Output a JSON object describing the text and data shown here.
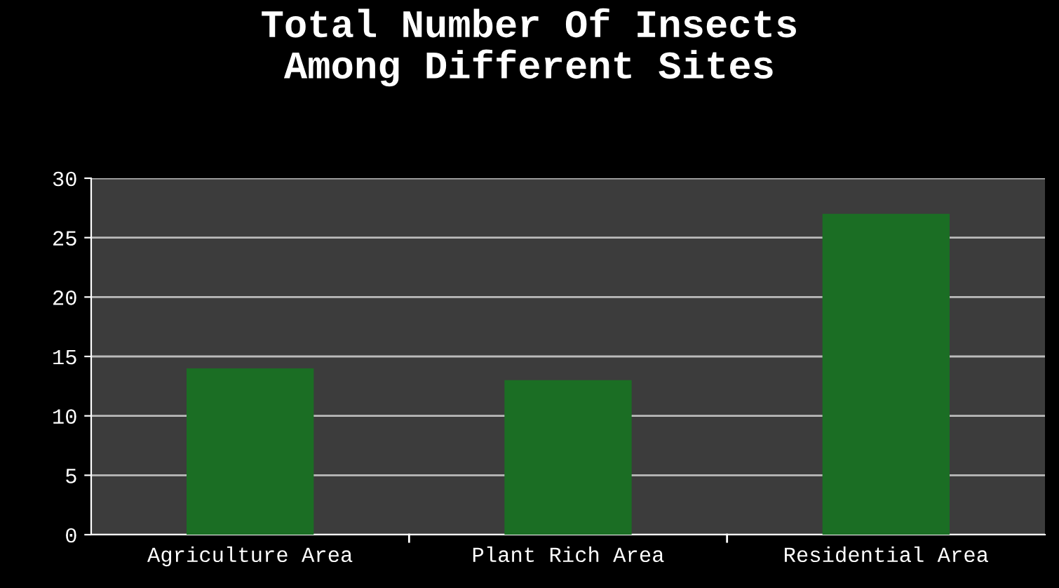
{
  "chart_data": {
    "type": "bar",
    "title": "Total Number Of Insects\nAmong Different Sites",
    "categories": [
      "Agriculture Area",
      "Plant Rich Area",
      "Residential Area"
    ],
    "values": [
      14,
      13,
      27
    ],
    "color": "#1b6e24",
    "ylim": [
      0,
      30
    ],
    "yticks": [
      0,
      5,
      10,
      15,
      20,
      25,
      30
    ],
    "grid": "y",
    "legend": false
  }
}
